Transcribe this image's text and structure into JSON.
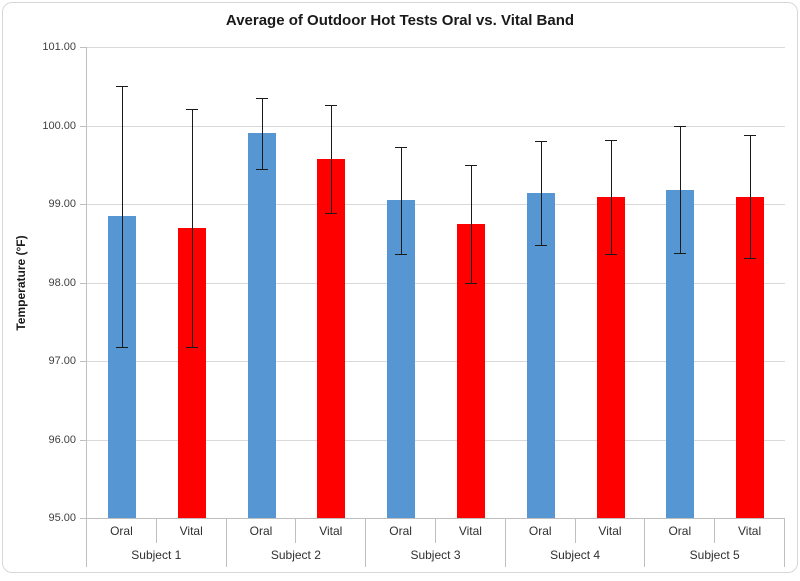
{
  "window": {
    "background": "#FFFFFF",
    "border_color": "#D7D7D7"
  },
  "chart_data": {
    "type": "bar",
    "title": "Average of Outdoor Hot Tests Oral vs. Vital Band",
    "ylabel": "Temperature (°F)",
    "xlabel": "",
    "ylim": [
      95,
      101
    ],
    "ytick_interval": 1,
    "ytick_labels": [
      "101.00",
      "100.00",
      "99.00",
      "98.00",
      "97.00",
      "96.00",
      "95.00"
    ],
    "grid": true,
    "legend_position": "none",
    "categories": [
      "Subject 1",
      "Subject 2",
      "Subject 3",
      "Subject 4",
      "Subject 5"
    ],
    "bar_labels_per_group": [
      "Oral",
      "Vital"
    ],
    "series": [
      {
        "name": "Oral",
        "color": "#5696D2",
        "values": [
          98.85,
          99.9,
          99.05,
          99.14,
          99.18
        ],
        "error_low": [
          97.18,
          99.45,
          98.36,
          98.48,
          98.37
        ],
        "error_high": [
          100.5,
          100.35,
          99.72,
          99.8,
          100.0
        ]
      },
      {
        "name": "Vital",
        "color": "#FF0000",
        "values": [
          98.69,
          99.57,
          98.74,
          99.09,
          99.09
        ],
        "error_low": [
          97.18,
          98.89,
          98.0,
          98.36,
          98.31
        ],
        "error_high": [
          100.21,
          100.26,
          99.5,
          99.82,
          99.88
        ]
      }
    ],
    "error_bar_color": "#1A1A1A",
    "gridline_color": "#D9D9D9",
    "axis_line_color": "#BFBFBF",
    "tick_label_color": "#404040",
    "title_color": "#1A1A1A"
  }
}
